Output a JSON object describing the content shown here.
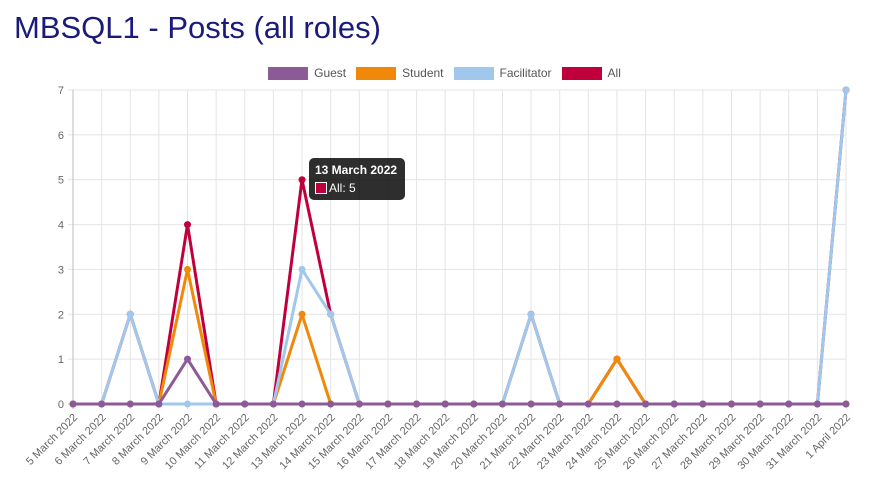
{
  "page": {
    "title": "MBSQL1 - Posts (all roles)"
  },
  "chart_data": {
    "type": "line",
    "title": "MBSQL1 - Posts (all roles)",
    "xlabel": "",
    "ylabel": "",
    "ylim": [
      0,
      7
    ],
    "yticks": [
      "0",
      "1",
      "2",
      "3",
      "4",
      "5",
      "6",
      "7"
    ],
    "grid": true,
    "legend_position": "top",
    "categories": [
      "5 March 2022",
      "6 March 2022",
      "7 March 2022",
      "8 March 2022",
      "9 March 2022",
      "10 March 2022",
      "11 March 2022",
      "12 March 2022",
      "13 March 2022",
      "14 March 2022",
      "15 March 2022",
      "16 March 2022",
      "17 March 2022",
      "18 March 2022",
      "19 March 2022",
      "20 March 2022",
      "21 March 2022",
      "22 March 2022",
      "23 March 2022",
      "24 March 2022",
      "25 March 2022",
      "26 March 2022",
      "27 March 2022",
      "28 March 2022",
      "29 March 2022",
      "30 March 2022",
      "31 March 2022",
      "1 April 2022"
    ],
    "series": [
      {
        "name": "All",
        "color": "#c0003c",
        "values": [
          0,
          0,
          2,
          0,
          4,
          0,
          0,
          0,
          5,
          2,
          0,
          0,
          0,
          0,
          0,
          0,
          2,
          0,
          0,
          1,
          0,
          0,
          0,
          0,
          0,
          0,
          0,
          7
        ]
      },
      {
        "name": "Student",
        "color": "#f0880a",
        "values": [
          0,
          0,
          0,
          0,
          3,
          0,
          0,
          0,
          2,
          0,
          0,
          0,
          0,
          0,
          0,
          0,
          0,
          0,
          0,
          1,
          0,
          0,
          0,
          0,
          0,
          0,
          0,
          0
        ]
      },
      {
        "name": "Facilitator",
        "color": "#a0c8ec",
        "values": [
          0,
          0,
          2,
          0,
          0,
          0,
          0,
          0,
          3,
          2,
          0,
          0,
          0,
          0,
          0,
          0,
          2,
          0,
          0,
          0,
          0,
          0,
          0,
          0,
          0,
          0,
          0,
          7
        ]
      },
      {
        "name": "Guest",
        "color": "#8c5a96",
        "values": [
          0,
          0,
          0,
          0,
          1,
          0,
          0,
          0,
          0,
          0,
          0,
          0,
          0,
          0,
          0,
          0,
          0,
          0,
          0,
          0,
          0,
          0,
          0,
          0,
          0,
          0,
          0,
          0
        ]
      }
    ],
    "legend": [
      {
        "name": "Guest",
        "color": "#8c5a96"
      },
      {
        "name": "Student",
        "color": "#f0880a"
      },
      {
        "name": "Facilitator",
        "color": "#a0c8ec"
      },
      {
        "name": "All",
        "color": "#c0003c"
      }
    ]
  },
  "tooltip": {
    "title": "13 March 2022",
    "label": "All: 5",
    "color": "#c0003c"
  }
}
